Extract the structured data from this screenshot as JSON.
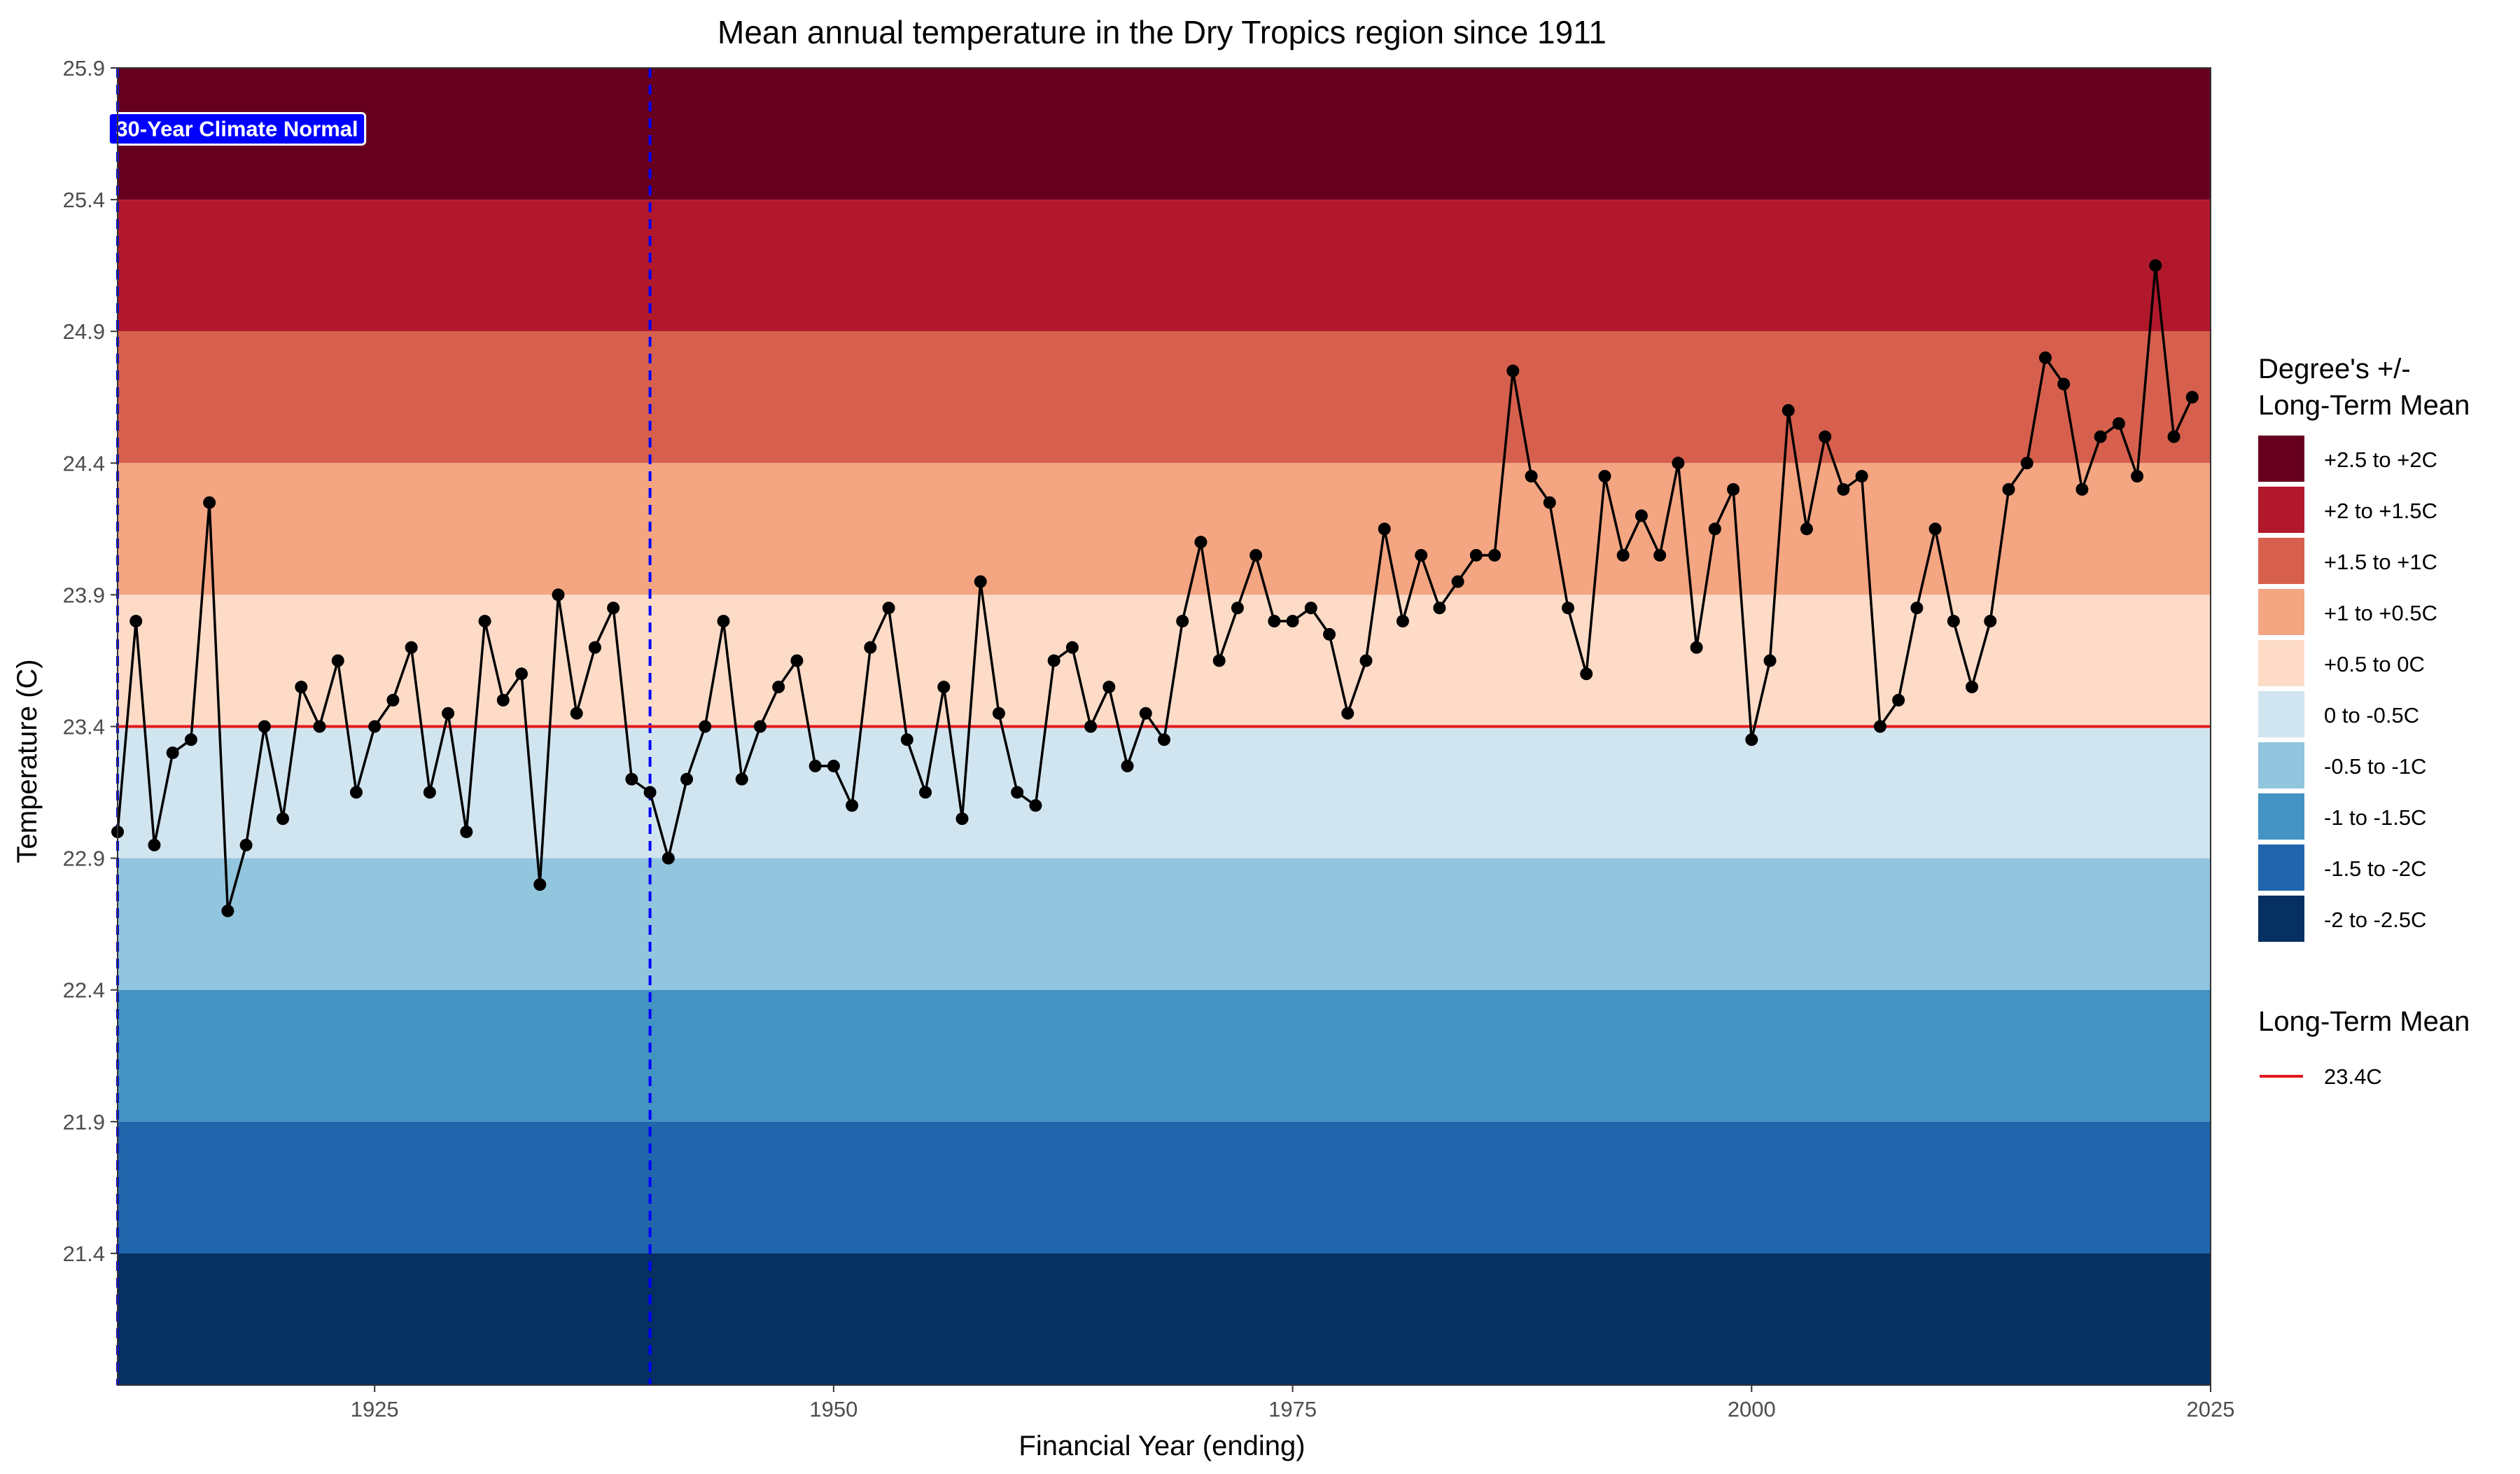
{
  "chart_data": {
    "type": "line",
    "title": "Mean annual temperature in the Dry Tropics region since 1911",
    "xlabel": "Financial Year (ending)",
    "ylabel": "Temperature (C)",
    "xlim": [
      1911,
      2025
    ],
    "ylim": [
      20.9,
      25.9
    ],
    "x_ticks": [
      1925,
      1950,
      1975,
      2000,
      2025
    ],
    "y_ticks": [
      21.4,
      21.9,
      22.4,
      22.9,
      23.4,
      23.9,
      24.4,
      24.9,
      25.4,
      25.9
    ],
    "grid": false,
    "long_term_mean": 23.4,
    "mean_line_color": "#e31a1c",
    "series": [
      {
        "color": "#000000",
        "x": [
          1911,
          1912,
          1913,
          1914,
          1915,
          1916,
          1917,
          1918,
          1919,
          1920,
          1921,
          1922,
          1923,
          1924,
          1925,
          1926,
          1927,
          1928,
          1929,
          1930,
          1931,
          1932,
          1933,
          1934,
          1935,
          1936,
          1937,
          1938,
          1939,
          1940,
          1941,
          1942,
          1943,
          1944,
          1945,
          1946,
          1947,
          1948,
          1949,
          1950,
          1951,
          1952,
          1953,
          1954,
          1955,
          1956,
          1957,
          1958,
          1959,
          1960,
          1961,
          1962,
          1963,
          1964,
          1965,
          1966,
          1967,
          1968,
          1969,
          1970,
          1971,
          1972,
          1973,
          1974,
          1975,
          1976,
          1977,
          1978,
          1979,
          1980,
          1981,
          1982,
          1983,
          1984,
          1985,
          1986,
          1987,
          1988,
          1989,
          1990,
          1991,
          1992,
          1993,
          1994,
          1995,
          1996,
          1997,
          1998,
          1999,
          2000,
          2001,
          2002,
          2003,
          2004,
          2005,
          2006,
          2007,
          2008,
          2009,
          2010,
          2011,
          2012,
          2013,
          2014,
          2015,
          2016,
          2017,
          2018,
          2019,
          2020,
          2021,
          2022,
          2023,
          2024
        ],
        "values": [
          23.0,
          23.8,
          22.95,
          23.3,
          23.35,
          24.25,
          22.7,
          22.95,
          23.4,
          23.05,
          23.55,
          23.4,
          23.65,
          23.15,
          23.4,
          23.5,
          23.7,
          23.15,
          23.45,
          23.0,
          23.8,
          23.5,
          23.6,
          22.8,
          23.9,
          23.45,
          23.7,
          23.85,
          23.2,
          23.15,
          22.9,
          23.2,
          23.4,
          23.8,
          23.2,
          23.4,
          23.55,
          23.65,
          23.25,
          23.25,
          23.1,
          23.7,
          23.85,
          23.35,
          23.15,
          23.55,
          23.05,
          23.95,
          23.45,
          23.15,
          23.1,
          23.65,
          23.7,
          23.4,
          23.55,
          23.25,
          23.45,
          23.35,
          23.8,
          24.1,
          23.65,
          23.85,
          24.05,
          23.8,
          23.8,
          23.85,
          23.75,
          23.45,
          23.65,
          24.15,
          23.8,
          24.05,
          23.85,
          23.95,
          24.05,
          24.05,
          24.75,
          24.35,
          24.25,
          23.85,
          23.6,
          24.35,
          24.05,
          24.2,
          24.05,
          24.4,
          23.7,
          24.15,
          24.3,
          23.35,
          23.65,
          24.6,
          24.15,
          24.5,
          24.3,
          24.35,
          23.4,
          23.5,
          23.85,
          24.15,
          23.8,
          23.55,
          23.8,
          24.3,
          24.4,
          24.8,
          24.7,
          24.3,
          24.5,
          24.55,
          24.35,
          25.15,
          24.5,
          24.65
        ]
      }
    ],
    "bands": [
      {
        "from": 25.4,
        "to": 25.9,
        "color": "#67001f"
      },
      {
        "from": 24.9,
        "to": 25.4,
        "color": "#b2182b"
      },
      {
        "from": 24.4,
        "to": 24.9,
        "color": "#d6604d"
      },
      {
        "from": 23.9,
        "to": 24.4,
        "color": "#f4a582"
      },
      {
        "from": 23.4,
        "to": 23.9,
        "color": "#fddbc7"
      },
      {
        "from": 22.9,
        "to": 23.4,
        "color": "#d1e5f0"
      },
      {
        "from": 22.4,
        "to": 22.9,
        "color": "#92c5de"
      },
      {
        "from": 21.9,
        "to": 22.4,
        "color": "#4393c3"
      },
      {
        "from": 21.4,
        "to": 21.9,
        "color": "#2166ac"
      },
      {
        "from": 20.9,
        "to": 21.4,
        "color": "#053061"
      }
    ],
    "climate_normal": {
      "label": "30-Year Climate Normal",
      "start": 1911,
      "end": 1940,
      "color": "#0000ff"
    },
    "legend": {
      "placement": "right",
      "bands_title_line1": "Degree's +/-",
      "bands_title_line2": "Long-Term Mean",
      "bands": [
        {
          "label": "+2.5 to +2C",
          "color": "#67001f"
        },
        {
          "label": "+2 to +1.5C",
          "color": "#b2182b"
        },
        {
          "label": "+1.5 to +1C",
          "color": "#d6604d"
        },
        {
          "label": "+1 to +0.5C",
          "color": "#f4a582"
        },
        {
          "label": "+0.5 to 0C",
          "color": "#fddbc7"
        },
        {
          "label": "0 to -0.5C",
          "color": "#d1e5f0"
        },
        {
          "label": "-0.5 to -1C",
          "color": "#92c5de"
        },
        {
          "label": "-1 to -1.5C",
          "color": "#4393c3"
        },
        {
          "label": "-1.5 to -2C",
          "color": "#2166ac"
        },
        {
          "label": "-2 to -2.5C",
          "color": "#053061"
        }
      ],
      "mean_title": "Long-Term Mean",
      "mean_label": "23.4C"
    }
  }
}
